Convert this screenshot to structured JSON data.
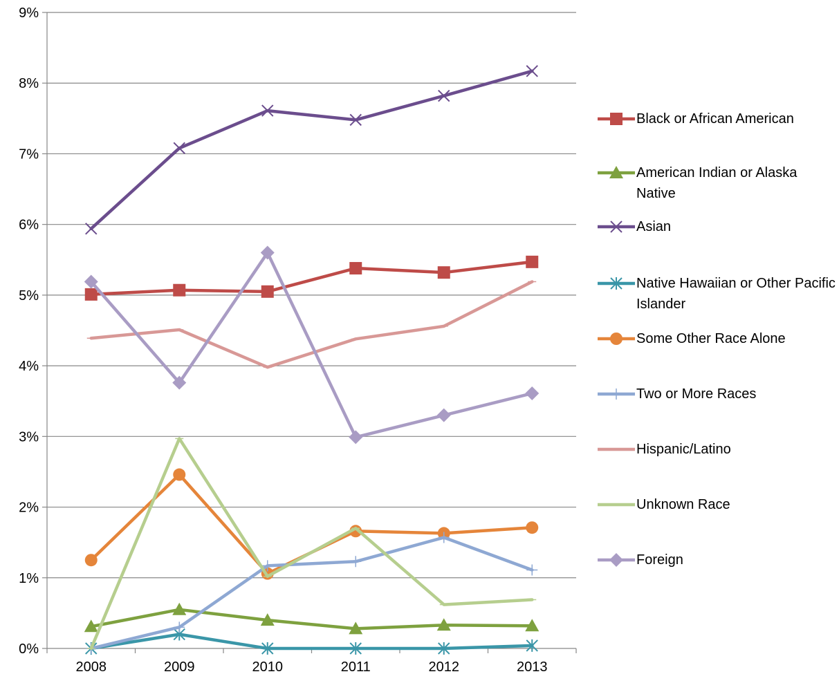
{
  "chart_data": {
    "type": "line",
    "title": "",
    "xlabel": "",
    "ylabel": "",
    "categories": [
      "2008",
      "2009",
      "2010",
      "2011",
      "2012",
      "2013"
    ],
    "ylim": [
      0,
      9
    ],
    "yticks": [
      "0%",
      "1%",
      "2%",
      "3%",
      "4%",
      "5%",
      "6%",
      "7%",
      "8%",
      "9%"
    ],
    "grid": true,
    "legend_position": "right",
    "series": [
      {
        "name": "Black or African American",
        "color": "#BE4B48",
        "marker": "square",
        "values": [
          5.01,
          5.07,
          5.05,
          5.38,
          5.32,
          5.47
        ]
      },
      {
        "name": "American Indian or Alaska Native",
        "color": "#7EA13F",
        "marker": "triangle",
        "values": [
          0.31,
          0.55,
          0.4,
          0.28,
          0.33,
          0.32
        ]
      },
      {
        "name": "Asian",
        "color": "#6B4D8D",
        "marker": "x",
        "values": [
          5.94,
          7.08,
          7.61,
          7.48,
          7.82,
          8.17
        ]
      },
      {
        "name": "Native Hawaiian or Other Pacific Islander",
        "color": "#3A96A8",
        "marker": "asterisk",
        "values": [
          0.0,
          0.2,
          0.0,
          0.0,
          0.0,
          0.04
        ]
      },
      {
        "name": "Some Other Race Alone",
        "color": "#E5853A",
        "marker": "circle",
        "values": [
          1.25,
          2.46,
          1.06,
          1.66,
          1.63,
          1.71
        ]
      },
      {
        "name": "Two or More Races",
        "color": "#8EA8D3",
        "marker": "plus",
        "values": [
          0.0,
          0.3,
          1.17,
          1.23,
          1.57,
          1.11
        ]
      },
      {
        "name": "Hispanic/Latino",
        "color": "#D89896",
        "marker": "dash",
        "values": [
          4.39,
          4.51,
          3.98,
          4.38,
          4.56,
          5.19
        ]
      },
      {
        "name": "Unknown Race",
        "color": "#B6CE8E",
        "marker": "dash",
        "values": [
          0.0,
          2.97,
          1.02,
          1.7,
          0.62,
          0.69
        ]
      },
      {
        "name": "Foreign",
        "color": "#A99CC4",
        "marker": "diamond",
        "values": [
          5.19,
          3.76,
          5.6,
          2.99,
          3.3,
          3.61
        ]
      }
    ]
  }
}
